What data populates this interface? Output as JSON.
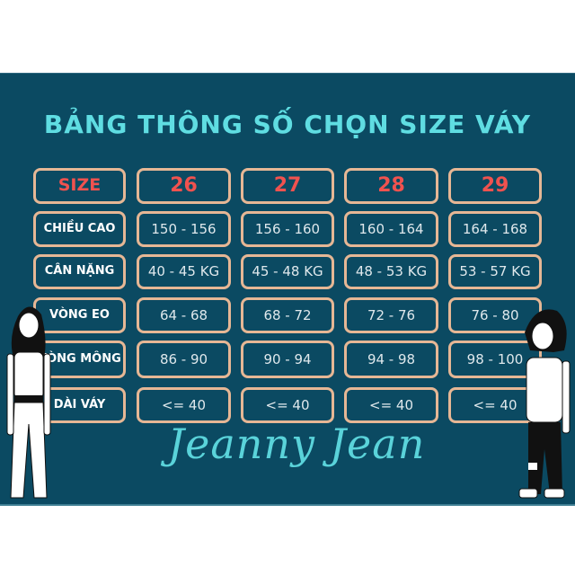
{
  "title": "BẢNG THÔNG SỐ CHỌN SIZE VÁY",
  "header": {
    "label": "SIZE",
    "sizes": [
      "26",
      "27",
      "28",
      "29"
    ]
  },
  "rows": [
    {
      "label": "CHIỀU CAO",
      "values": [
        "150 - 156",
        "156 - 160",
        "160 - 164",
        "164 - 168"
      ]
    },
    {
      "label": "CÂN NẶNG",
      "values": [
        "40 - 45 KG",
        "45 - 48 KG",
        "48 - 53 KG",
        "53 - 57 KG"
      ]
    },
    {
      "label": "VÒNG EO",
      "values": [
        "64 - 68",
        "68 - 72",
        "72 - 76",
        "76 - 80"
      ]
    },
    {
      "label": "VÒNG MÔNG",
      "values": [
        "86 - 90",
        "90 - 94",
        "94 - 98",
        "98 - 100"
      ]
    },
    {
      "label": "DÀI VÁY",
      "values": [
        "<= 40",
        "<= 40",
        "<= 40",
        "<= 40"
      ]
    }
  ],
  "brand": "Jeanny Jean",
  "colors": {
    "background": "#0b4a62",
    "title": "#5fdde2",
    "border": "#e6b795",
    "size_numbers": "#f0524f"
  }
}
